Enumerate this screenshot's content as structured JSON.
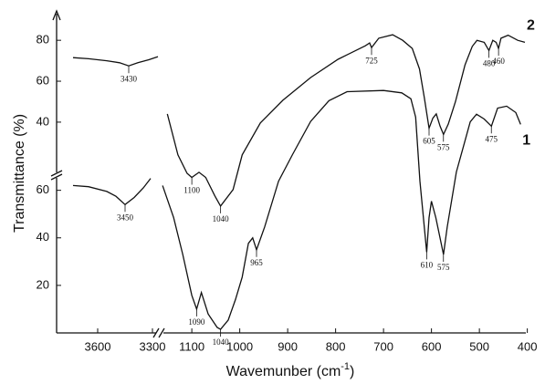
{
  "chart_data": {
    "type": "line",
    "ylabel": "Transmittance (%)",
    "xlabel": [
      "Wavemunber (cm",
      "-1",
      ")"
    ],
    "xlim": [
      [
        3825,
        3260
      ],
      [
        1165,
        405
      ]
    ],
    "xticks": [
      3600,
      3300,
      1100,
      1000,
      900,
      800,
      700,
      600,
      500,
      400
    ],
    "ylim": [
      0,
      66
    ],
    "yticks": [
      20,
      40,
      60
    ],
    "y2lim": [
      15,
      93
    ],
    "y2ticks": [
      40,
      60,
      80
    ],
    "series": [
      {
        "name": "1",
        "color": "#111111",
        "x": [
          3735,
          3650,
          3550,
          3500,
          3450,
          3400,
          3350,
          3310,
          null,
          1161,
          1138,
          1119,
          1100,
          1090,
          1080,
          1066,
          1047,
          1040,
          1024,
          1009,
          995,
          982,
          973,
          965,
          948,
          919,
          890,
          852,
          814,
          776,
          700,
          662,
          643,
          633,
          624,
          610,
          605,
          600,
          591,
          575,
          567,
          548,
          519,
          506,
          490,
          475,
          462,
          443,
          424,
          414
        ],
        "values": [
          62,
          61.5,
          59.5,
          57.5,
          54,
          57,
          61,
          65,
          null,
          62,
          48.5,
          33,
          15.8,
          10,
          17,
          8,
          2.3,
          1.5,
          5.4,
          14,
          23.5,
          37.7,
          40,
          35,
          44.6,
          63.8,
          75,
          89,
          97.7,
          101.5,
          102,
          101,
          98.5,
          90.8,
          63.8,
          34,
          48.5,
          55.4,
          48.5,
          33,
          44.6,
          67.7,
          88.8,
          92,
          90,
          87,
          94.6,
          95.4,
          92.7,
          87.7
        ],
        "peaks": [
          3450,
          1090,
          1040,
          965,
          610,
          575,
          475
        ]
      },
      {
        "name": "2",
        "color": "#111111",
        "axis": "y2",
        "x": [
          3735,
          3650,
          3550,
          3480,
          3430,
          3380,
          3320,
          3270,
          null,
          1151,
          1129,
          1110,
          1100,
          1085,
          1071,
          1052,
          1040,
          1014,
          995,
          957,
          910,
          852,
          795,
          738,
          729,
          725,
          710,
          681,
          660,
          640,
          625,
          615,
          605,
          597,
          590,
          582,
          575,
          565,
          550,
          530,
          515,
          505,
          490,
          480,
          472,
          465,
          460,
          455,
          440,
          420,
          405
        ],
        "values": [
          71.5,
          71,
          70,
          69,
          67.5,
          69,
          70.5,
          72,
          null,
          44,
          24,
          15,
          13,
          15.5,
          13,
          4,
          -1,
          7,
          24,
          39.6,
          50.7,
          61.8,
          70.7,
          77.3,
          78.7,
          76.4,
          81,
          82.7,
          80,
          76,
          66,
          52,
          37,
          42,
          44,
          38,
          34,
          39,
          50,
          68,
          77,
          80,
          79,
          75,
          80,
          79,
          76,
          81,
          82.5,
          80,
          79
        ],
        "peaks": [
          3430,
          1100,
          1040,
          725,
          605,
          575,
          480,
          460
        ]
      }
    ]
  }
}
